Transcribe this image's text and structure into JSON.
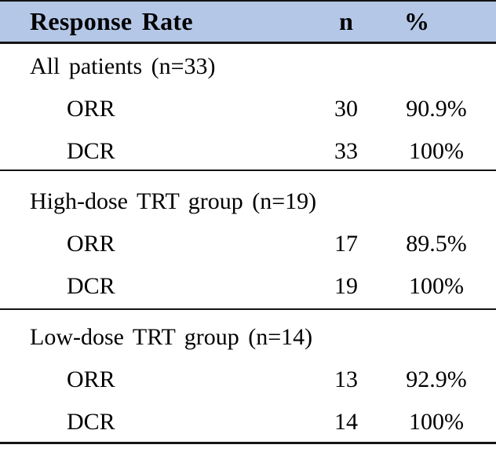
{
  "table": {
    "header": {
      "response_rate": "Response Rate",
      "n": "n",
      "percent": "%"
    },
    "colors": {
      "header_bg": "#b4c7e7",
      "border": "#141414",
      "text": "#000000"
    },
    "sections": [
      {
        "label": "All patients (n=33)",
        "rows": [
          {
            "measure": "ORR",
            "n": "30",
            "percent": "90.9%"
          },
          {
            "measure": "DCR",
            "n": "33",
            "percent": "100%"
          }
        ]
      },
      {
        "label": "High-dose TRT group (n=19)",
        "rows": [
          {
            "measure": "ORR",
            "n": "17",
            "percent": "89.5%"
          },
          {
            "measure": "DCR",
            "n": "19",
            "percent": "100%"
          }
        ]
      },
      {
        "label": "Low-dose TRT group (n=14)",
        "rows": [
          {
            "measure": "ORR",
            "n": "13",
            "percent": "92.9%"
          },
          {
            "measure": "DCR",
            "n": "14",
            "percent": "100%"
          }
        ]
      }
    ]
  }
}
